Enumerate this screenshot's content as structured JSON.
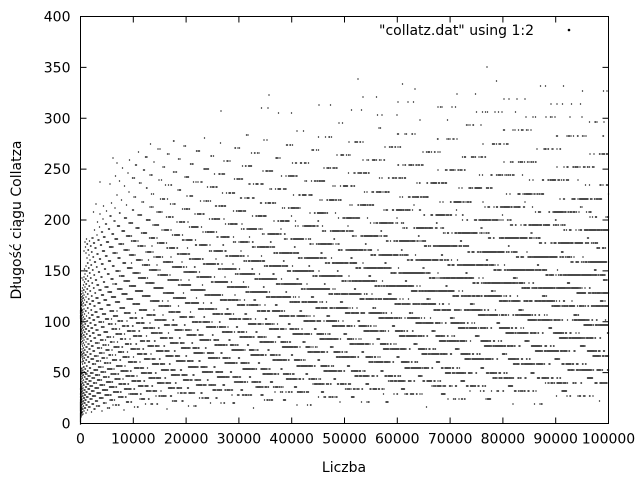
{
  "chart_data": {
    "type": "scatter",
    "title": "",
    "xlabel": "Liczba",
    "ylabel": "Długość ciągu Collatza",
    "xlim": [
      0,
      100000
    ],
    "ylim": [
      0,
      400
    ],
    "xticks": [
      0,
      10000,
      20000,
      30000,
      40000,
      50000,
      60000,
      70000,
      80000,
      90000,
      100000
    ],
    "yticks": [
      0,
      50,
      100,
      150,
      200,
      250,
      300,
      350,
      400
    ],
    "grid": false,
    "legend": {
      "position": "top-right",
      "entries": [
        "\"collatz.dat\" using 1:2"
      ]
    },
    "series": [
      {
        "name": "\"collatz.dat\" using 1:2",
        "marker": "dot",
        "color": "#000000",
        "x_range": [
          1,
          100000
        ],
        "y_formula": "Collatz total stopping time of x",
        "values": []
      }
    ]
  }
}
